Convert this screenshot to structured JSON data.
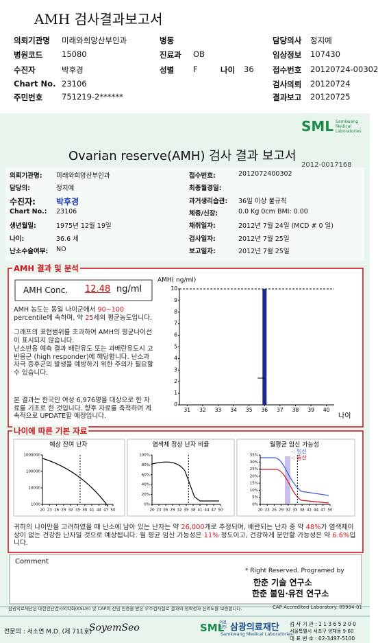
{
  "header": {
    "title": "AMH 검사결과보고서",
    "institution_label": "의뢰기관명",
    "institution": "미래와희망산부인과",
    "ward_label": "병동",
    "doctor_label": "담당의사",
    "doctor": "정지예",
    "hospital_code_label": "병원코드",
    "hospital_code": "15080",
    "dept_label": "진료과",
    "dept": "OB",
    "clinical_label": "임상정보",
    "clinical": "107430",
    "patient_label": "수진자",
    "patient": "박후경",
    "sex_label": "성별",
    "sex": "F",
    "age_label": "나이",
    "age": 36,
    "receipt_label": "접수번호",
    "receipt": "20120724-00302",
    "chart_label": "Chart No.",
    "chart_no": "23106",
    "request_label": "검사의뢰",
    "request": "20120724",
    "id_label": "주민번호",
    "id_no": "751219-2******",
    "report_label": "결과보고",
    "report": "20120725"
  },
  "report": {
    "logo": "SML",
    "logo_sub": "Samkwang Medical Laboratories",
    "title": "Ovarian reserve(AMH) 검사 결과 보고서",
    "number": "2012-0017168",
    "left_info": [
      {
        "label": "의뢰기관명:",
        "value": "미래와희망산부인과"
      },
      {
        "label": "담당의:",
        "value": "정지예"
      },
      {
        "label": "수진자:",
        "value": "박후경"
      },
      {
        "label": "Chart No.:",
        "value": "23106"
      },
      {
        "label": "생년월일:",
        "value": "1975년 12월 19일"
      },
      {
        "label": "나이:",
        "value": "36.6 세"
      },
      {
        "label": "난소수술여부:",
        "value": "NO"
      }
    ],
    "right_info": [
      {
        "label": "접수번호:",
        "value": "2012072400302"
      },
      {
        "label": "최종월경일:"
      },
      {
        "label": "과거생리습관:",
        "value": "36일 이상 불규칙"
      },
      {
        "label": "체중/신장:",
        "value": "0.0 Kg      0cm      BMI:   0.00"
      },
      {
        "label": "채취일자:",
        "value": "2012년 7월 24일   (MCD # 0 일)"
      },
      {
        "label": "검사일자:",
        "value": "2012년 7월 25일"
      },
      {
        "label": "보고일자:",
        "value": "2012년 7월 25일"
      }
    ]
  },
  "amh": {
    "heading": "AMH 결과 및 분석",
    "conc_label": "AMH Conc.",
    "conc": 12.48,
    "conc_unit": "ng/ml",
    "p1": [
      "AMH 농도는 동일 나이군에서 ",
      "90~100",
      " percentile에 속하며, 약 ",
      "25",
      "세의 평균농도입니다."
    ],
    "p2": "그래프의 표현범위를 초과하여 AMH의 평균나이선이 표시되지 않습니다.",
    "p3": "난소반응 예측 결과 배란유도 또는 과배란유도시 고반응군 (high responder)에 해당합니다. 난소과자극 증후군의 발생을 예방하기 위한 주의가 필요할 수 있습니다.",
    "p4": "본 결과는 한국인 여성 6,976명을 대상으로 한 자료를 기초로 한 것입니다. 향후 자료를 축적하여 계속적으로 UPDATE할 예정입니다.",
    "chart": {
      "y_label": "AMH( ng/ml)",
      "x_label": "나이",
      "xlim": [
        30.5,
        40.5
      ],
      "xticks": [
        31,
        32,
        33,
        34,
        35,
        36,
        37,
        38,
        39,
        40
      ],
      "ylim": [
        0,
        10
      ],
      "yticks": [
        0,
        1,
        2,
        3,
        4,
        5,
        6,
        7,
        8,
        9,
        10
      ]
    }
  },
  "age_data": {
    "heading": "나이에 따른 기본 자료",
    "charts": [
      {
        "title": "예상 잔여 난자",
        "log": true,
        "ylim": [
          1000,
          1000000
        ],
        "yticks": [
          1000,
          10000,
          100000,
          1000000
        ],
        "xlim": [
          20,
          50
        ],
        "xticks": [
          20,
          23,
          26,
          29,
          32,
          35,
          38,
          41,
          44,
          47,
          50
        ]
      },
      {
        "title": "염색체 정상 난자 비율",
        "log": false,
        "ylim": [
          0,
          100
        ],
        "yticks": [
          {
            "value": 0,
            "label": "0%"
          },
          {
            "value": 20,
            "label": "20%"
          },
          {
            "value": 40,
            "label": "40%"
          },
          {
            "value": 60,
            "label": "60%"
          },
          {
            "value": 80,
            "label": "80%"
          },
          {
            "value": 100,
            "label": "100%"
          }
        ],
        "xlim": [
          20,
          50
        ],
        "xticks": [
          20,
          23,
          26,
          29,
          32,
          35,
          38,
          41,
          44,
          47,
          50
        ]
      },
      {
        "title": "월평균 임신 가능성",
        "log": false,
        "ylim": [
          0,
          35
        ],
        "yticks": [
          {
            "value": 0,
            "label": "0%"
          },
          {
            "value": 5,
            "label": "5%"
          },
          {
            "value": 10,
            "label": "10%"
          },
          {
            "value": 15,
            "label": "15%"
          },
          {
            "value": 20,
            "label": "20%"
          },
          {
            "value": 25,
            "label": "25%"
          },
          {
            "value": 30,
            "label": "30%"
          },
          {
            "value": 35,
            "label": "35%"
          }
        ],
        "xlim": [
          20,
          50
        ],
        "xticks": [
          20,
          23,
          26,
          29,
          32,
          35,
          38,
          41,
          44,
          47,
          50
        ],
        "legend": [
          "-: 임신",
          "-: 출산"
        ]
      }
    ],
    "summary": [
      "귀하의 나이만을 고려하였을 때 난소에 남아 있는 난자는 약 ",
      "26,000",
      "개로 추정되며, 배란되는 난자 중 약 ",
      "48%",
      "가 염색체이상이 없는 건강한 난자일 것으로 예상됩니다. 월 평균 임신 가능성은 ",
      "11%",
      " 정도이고, 건강하게 분만할 가능성은 약 ",
      "6.6%",
      "입니다."
    ]
  },
  "comment": {
    "label": "Comment",
    "rights": "* Right Reserved. Programed by",
    "lab1": "한춘 기술 연구소",
    "lab2": "한춘 불임·유전 연구소"
  },
  "footer": {
    "notice": "삼광의료재단은 대한진단검사의학회(KSLM) 및 CAP의 신임 인증을 받은 우수검사실로 결과의 정확성과 신뢰도를 보증합니다.",
    "cap": "CAP Accredited Laboratory. 89994-01",
    "specialist": "전문의 : 서소연 M.D. (제 711호)",
    "signature": "SoyemSeo",
    "org_prefix": "의료법인",
    "org": "삼광의료재단",
    "org_en": "Samkwang Medical Laboratories",
    "lab_no": "검 사 기 관 : 1 1 3 6 5 2 0 0",
    "address": "서울특별시 서초구 양재동 9-60",
    "phone": "대 표 번 호 : 02-3497-5100"
  }
}
